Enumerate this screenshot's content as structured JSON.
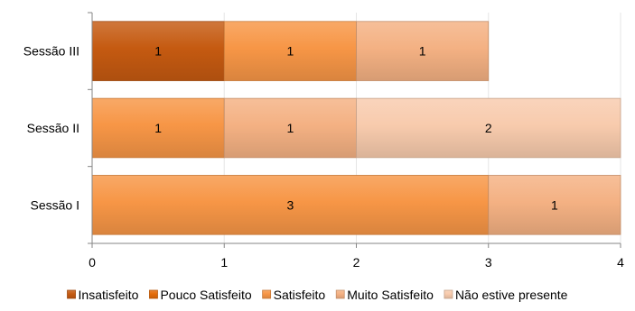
{
  "chart_data": {
    "type": "bar",
    "orientation": "horizontal",
    "stacked": true,
    "categories": [
      "Sessão III",
      "Sessão II",
      "Sessão I"
    ],
    "series": [
      {
        "name": "Insatisfeito",
        "color": "#C55A11",
        "values": [
          1,
          0,
          0
        ]
      },
      {
        "name": "Pouco Satisfeito",
        "color": "#E46C0A",
        "values": [
          0,
          0,
          0
        ]
      },
      {
        "name": "Satisfeito",
        "color": "#F79646",
        "values": [
          1,
          1,
          3
        ]
      },
      {
        "name": "Muito Satisfeito",
        "color": "#F4B183",
        "values": [
          1,
          1,
          1
        ]
      },
      {
        "name": "Não estive presente",
        "color": "#F8CBAD",
        "values": [
          0,
          2,
          0
        ]
      }
    ],
    "xlim": [
      0,
      4
    ],
    "x_ticks": [
      "0",
      "1",
      "2",
      "3",
      "4"
    ],
    "legend_position": "bottom",
    "grid": "vertical",
    "data_labels": true
  }
}
